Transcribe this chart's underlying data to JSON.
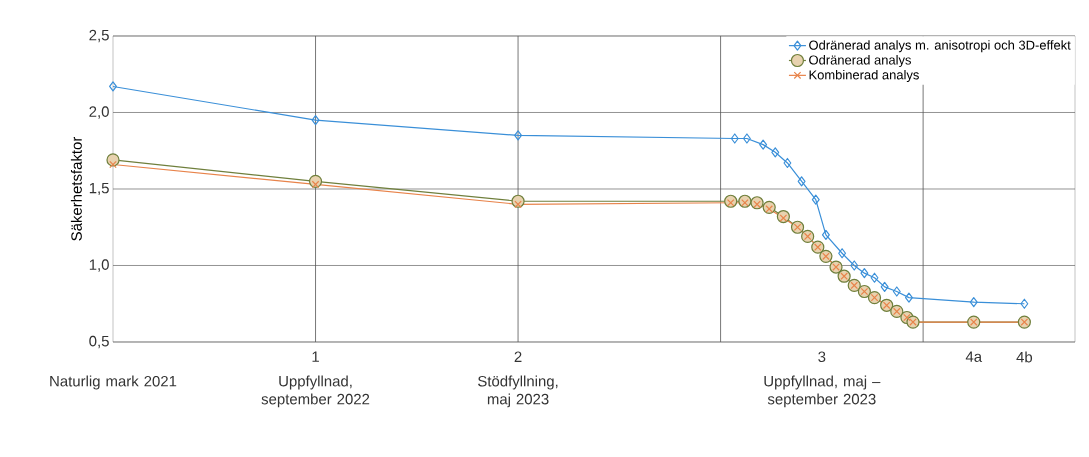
{
  "chart_data": {
    "type": "line",
    "ylabel": "Säkerhetsfaktor",
    "xlim": [
      0,
      4.75
    ],
    "ylim": [
      0.5,
      2.5
    ],
    "xticks": [
      {
        "value": 0,
        "label": null
      },
      {
        "value": 1,
        "label": "1"
      },
      {
        "value": 2,
        "label": "2"
      },
      {
        "value": 3.5,
        "label": "3"
      },
      {
        "value": 4.25,
        "label": "4a"
      },
      {
        "value": 4.5,
        "label": "4b"
      }
    ],
    "yticks": [
      {
        "value": 0.5,
        "label": "0,5"
      },
      {
        "value": 1.0,
        "label": "1,0"
      },
      {
        "value": 1.5,
        "label": "1,5"
      },
      {
        "value": 2.0,
        "label": "2,0"
      },
      {
        "value": 2.5,
        "label": "2,5"
      }
    ],
    "grid": "y",
    "legend": "top right",
    "annotations": [
      "Naturlig mark 2021",
      "Uppfyllnad, september 2022",
      "Stödfyllning, maj 2023",
      "Uppfyllnad, maj – september 2023"
    ],
    "ref_lines": [
      {
        "axis": "x",
        "value": 1,
        "color": "#555555"
      },
      {
        "axis": "x",
        "value": 2,
        "color": "#555555"
      },
      {
        "axis": "x",
        "value": 3,
        "color": "#555555"
      },
      {
        "axis": "x",
        "value": 4,
        "color": "#555555"
      }
    ],
    "series": [
      {
        "name": "Odränerad analys m. anisotropi och 3D-effekt",
        "color": "#3a8fd8",
        "marker": "diamond",
        "x": [
          0,
          1,
          2,
          3.07,
          3.13,
          3.21,
          3.27,
          3.33,
          3.4,
          3.47,
          3.52,
          3.6,
          3.66,
          3.71,
          3.76,
          3.81,
          3.87,
          3.93,
          4.25,
          4.5
        ],
        "values": [
          2.17,
          1.95,
          1.85,
          1.83,
          1.83,
          1.79,
          1.74,
          1.67,
          1.55,
          1.43,
          1.2,
          1.08,
          1.0,
          0.95,
          0.92,
          0.86,
          0.83,
          0.79,
          0.76,
          0.75
        ]
      },
      {
        "name": "Odränerad analys",
        "color": "#6f7f3c",
        "marker": "circle",
        "x": [
          0,
          1,
          2,
          3.05,
          3.12,
          3.18,
          3.24,
          3.31,
          3.38,
          3.43,
          3.48,
          3.52,
          3.57,
          3.61,
          3.66,
          3.71,
          3.76,
          3.82,
          3.87,
          3.92,
          3.95,
          4.25,
          4.5
        ],
        "values": [
          1.69,
          1.55,
          1.42,
          1.42,
          1.42,
          1.41,
          1.38,
          1.32,
          1.25,
          1.19,
          1.12,
          1.06,
          0.99,
          0.93,
          0.87,
          0.83,
          0.79,
          0.74,
          0.7,
          0.66,
          0.63,
          0.63,
          0.63
        ]
      },
      {
        "name": "Kombinerad analys",
        "color": "#e8834a",
        "marker": "cross",
        "x": [
          0,
          1,
          2,
          3.05,
          3.12,
          3.18,
          3.24,
          3.31,
          3.38,
          3.43,
          3.48,
          3.52,
          3.57,
          3.61,
          3.66,
          3.71,
          3.76,
          3.82,
          3.87,
          3.92,
          3.95,
          4.25,
          4.5
        ],
        "values": [
          1.66,
          1.53,
          1.4,
          1.41,
          1.41,
          1.4,
          1.37,
          1.31,
          1.25,
          1.19,
          1.12,
          1.06,
          0.99,
          0.93,
          0.87,
          0.83,
          0.79,
          0.74,
          0.7,
          0.66,
          0.63,
          0.63,
          0.63
        ]
      }
    ]
  }
}
